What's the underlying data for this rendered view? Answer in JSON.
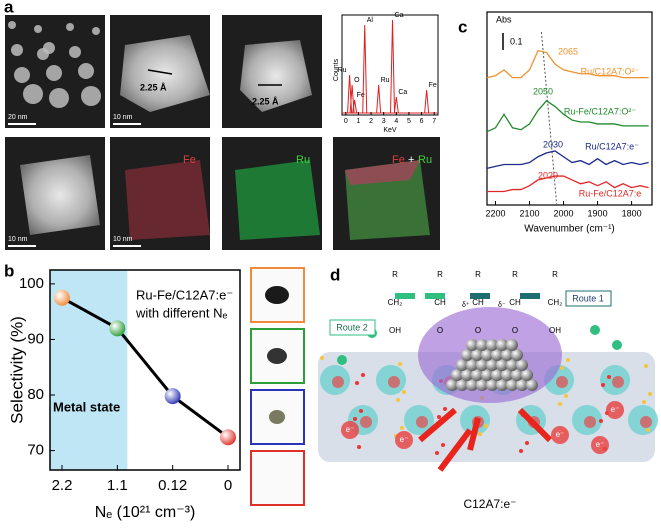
{
  "panel_labels": [
    "a",
    "b",
    "c",
    "d"
  ],
  "panel_a": {
    "scale_bars": [
      "20 nm",
      "10 nm",
      "10 nm",
      "10 nm"
    ],
    "lattice_spacings": [
      "2.25 Å",
      "2.25 Å"
    ],
    "map_labels": {
      "fe": "Fe",
      "ru": "Ru",
      "combined": [
        "Fe",
        "+",
        "Ru"
      ]
    }
  },
  "chart_data": [
    {
      "type": "line",
      "categories": [
        "2.2",
        "1.1",
        "0.12",
        "0"
      ],
      "values": [
        97.5,
        92,
        79.8,
        72.4
      ],
      "point_colors": [
        "#f08a3c",
        "#2e9e3a",
        "#2a35b5",
        "#e0302a"
      ],
      "line_color": "#000000",
      "ylim": [
        66.5,
        102.5
      ],
      "yticks": [
        70,
        80,
        90,
        100
      ],
      "ylabel": "Selectivity (%)",
      "xlabel": "Nₑ (10²¹ cm⁻³)",
      "annotations": [
        "Metal state",
        "Ru-Fe/C12A7:e⁻",
        "with different Nₑ"
      ],
      "shade_color": "#bfe6f5"
    },
    {
      "type": "line",
      "x": [
        2225,
        2200,
        2175,
        2150,
        2125,
        2100,
        2075,
        2050,
        2025,
        2000,
        1975,
        1950,
        1925,
        1900,
        1875,
        1850,
        1825,
        1800,
        1775,
        1750
      ],
      "series": [
        {
          "name": "Ru/C12A7:O²⁻",
          "peak_label": "2065",
          "color": "#f0922e",
          "values": [
            66,
            67,
            70,
            66,
            66,
            70,
            80,
            79,
            73,
            70,
            69,
            68,
            68,
            67,
            67,
            67,
            66,
            66,
            66,
            66
          ]
        },
        {
          "name": "Ru-Fe/C12A7:O²⁻",
          "peak_label": "2050",
          "color": "#1f8a2a",
          "values": [
            38,
            40,
            47,
            40,
            39,
            42,
            49,
            54,
            51,
            47,
            44,
            43,
            43,
            42,
            42,
            42,
            41,
            41,
            41,
            41
          ]
        },
        {
          "name": "Ru/C12A7:e⁻",
          "peak_label": "2030",
          "color": "#1c2a8c",
          "values": [
            19,
            20,
            21,
            21,
            21,
            22,
            25,
            27,
            28,
            25,
            22,
            23,
            21,
            24,
            21,
            23,
            21,
            22,
            21,
            22
          ]
        },
        {
          "name": "Ru-Fe/C12A7:e",
          "peak_label": "2020",
          "color": "#e02828",
          "values": [
            7,
            7,
            7,
            8,
            8,
            10,
            13,
            14,
            15,
            15,
            13,
            11,
            12,
            10,
            12,
            9,
            11,
            9,
            10,
            9
          ]
        }
      ],
      "xlim": [
        2225,
        1740
      ],
      "xticks": [
        2200,
        2100,
        2000,
        1900,
        1800
      ],
      "ylim": [
        0,
        100
      ],
      "xlabel": "Wavenumber (cm⁻¹)",
      "scale_bar": {
        "label": "Abs",
        "value_label": "0.1"
      }
    },
    {
      "type": "spectrum",
      "color": "#e02020",
      "peaks": [
        {
          "label": "Ru",
          "x": 0.3,
          "height": 40
        },
        {
          "label": "O",
          "x": 0.5,
          "height": 30
        },
        {
          "label": "Fe",
          "x": 0.7,
          "height": 15
        },
        {
          "label": "Al",
          "x": 1.5,
          "height": 90
        },
        {
          "label": "Ru",
          "x": 2.6,
          "height": 30
        },
        {
          "label": "Ca",
          "x": 3.7,
          "height": 95
        },
        {
          "label": "Ca",
          "x": 4.0,
          "height": 18
        },
        {
          "label": "Fe",
          "x": 6.4,
          "height": 25
        }
      ],
      "xlim": [
        -0.3,
        7.3
      ],
      "ylim": [
        0,
        100
      ],
      "xticks": [
        0,
        1,
        2,
        3,
        4,
        5,
        6,
        7
      ],
      "xlabel": "KeV",
      "ylabel": "Counts"
    }
  ],
  "panel_d": {
    "routes": [
      "Route 1",
      "Route 2"
    ],
    "support": "C12A7:e⁻",
    "electron": "e⁻",
    "charges": [
      "δ⁺",
      "δ⁻"
    ],
    "molecules": [
      [
        "R",
        "CH₂",
        "OH"
      ],
      [
        "R",
        "CH",
        "O"
      ],
      [
        "R",
        "CH",
        "O"
      ],
      [
        "R",
        "CH",
        "O"
      ],
      [
        "R",
        "CH₂",
        "OH"
      ]
    ]
  }
}
